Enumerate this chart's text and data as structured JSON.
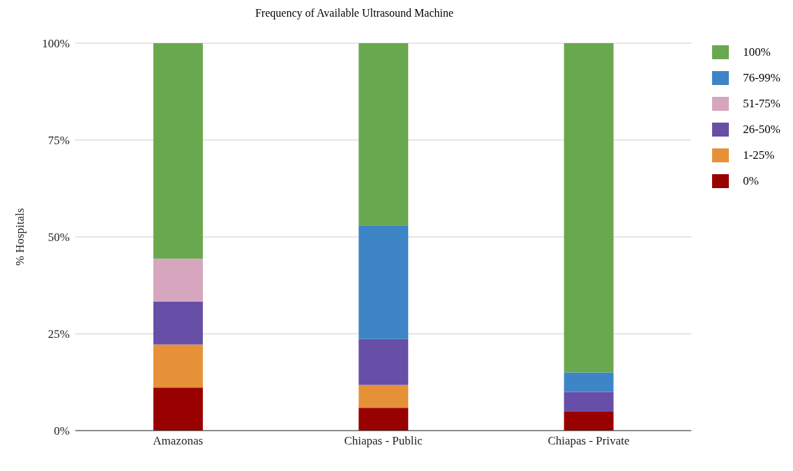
{
  "chart_data": {
    "type": "bar",
    "title": "Frequency of Available Ultrasound Machine",
    "ylabel": "% Hospitals",
    "categories": [
      "Amazonas",
      "Chiapas - Public",
      "Chiapas - Private"
    ],
    "stacked": true,
    "series": [
      {
        "name": "0%",
        "color": "#990000",
        "values": [
          11.1,
          5.9,
          5
        ]
      },
      {
        "name": "1-25%",
        "color": "#e69138",
        "values": [
          11.1,
          5.9,
          null
        ]
      },
      {
        "name": "26-50%",
        "color": "#674ea7",
        "values": [
          11.1,
          11.8,
          5
        ]
      },
      {
        "name": "51-75%",
        "color": "#d5a6bd",
        "values": [
          11.1,
          null,
          null
        ]
      },
      {
        "name": "76-99%",
        "color": "#3d85c6",
        "values": [
          null,
          29.4,
          5
        ]
      },
      {
        "name": "100%",
        "color": "#6aa84f",
        "values": [
          55.6,
          47.1,
          85
        ]
      }
    ],
    "ylim": [
      0,
      100
    ],
    "yticks": [
      {
        "value": 0,
        "label": "0%"
      },
      {
        "value": 25,
        "label": "25%"
      },
      {
        "value": 50,
        "label": "50%"
      },
      {
        "value": 75,
        "label": "75%"
      },
      {
        "value": 100,
        "label": "100%"
      }
    ],
    "grid": "y",
    "legend": "top right"
  }
}
